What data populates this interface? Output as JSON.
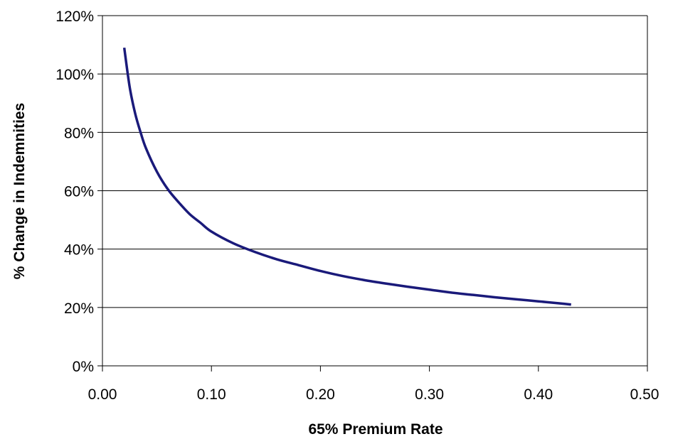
{
  "colors": {
    "series_line": "#1a1a7a",
    "gridline": "#000000",
    "axis": "#000000",
    "background": "#ffffff"
  },
  "chart_data": {
    "type": "line",
    "title": "",
    "xlabel": "65% Premium Rate",
    "ylabel": "% Change in Indemnities",
    "xlim": [
      0,
      0.5
    ],
    "ylim": [
      0,
      120
    ],
    "x_ticks": [
      "0.00",
      "0.10",
      "0.20",
      "0.30",
      "0.40",
      "0.50"
    ],
    "y_ticks": [
      "0%",
      "20%",
      "40%",
      "60%",
      "80%",
      "100%",
      "120%"
    ],
    "grid": "horizontal",
    "legend": "none",
    "series": [
      {
        "x": [
          0.02,
          0.025,
          0.03,
          0.035,
          0.04,
          0.05,
          0.06,
          0.07,
          0.08,
          0.09,
          0.1,
          0.12,
          0.14,
          0.16,
          0.18,
          0.2,
          0.22,
          0.24,
          0.26,
          0.28,
          0.3,
          0.32,
          0.34,
          0.36,
          0.38,
          0.4,
          0.42,
          0.43
        ],
        "y": [
          109,
          95.5,
          86.5,
          80,
          74.5,
          66.5,
          60.5,
          56,
          52,
          49,
          46,
          42,
          39,
          36.5,
          34.5,
          32.5,
          30.8,
          29.4,
          28.2,
          27.1,
          26.1,
          25.1,
          24.3,
          23.5,
          22.8,
          22.1,
          21.4,
          21
        ]
      }
    ]
  }
}
